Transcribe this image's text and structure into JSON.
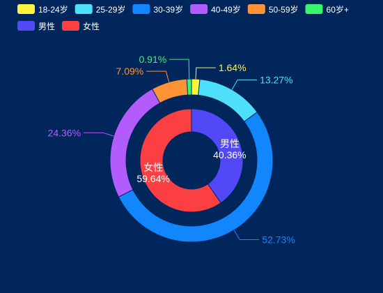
{
  "colors": {
    "background": "#01265c",
    "ring_gap": "#01265c"
  },
  "chart_data": {
    "type": "pie",
    "subtype": "nested-donut",
    "legend_position": "top-left",
    "legend": [
      {
        "label": "18-24岁",
        "color": "#fff33d"
      },
      {
        "label": "25-29岁",
        "color": "#4ee0fb"
      },
      {
        "label": "30-39岁",
        "color": "#1287fd"
      },
      {
        "label": "40-49岁",
        "color": "#b35cfe"
      },
      {
        "label": "50-59岁",
        "color": "#fd9334"
      },
      {
        "label": "60岁+",
        "color": "#38f56c"
      },
      {
        "label": "男性",
        "color": "#5348f6"
      },
      {
        "label": "女性",
        "color": "#fb3f43"
      }
    ],
    "outer_ring": {
      "series": [
        {
          "name": "18-24岁",
          "value": 1.64,
          "label": "1.64%",
          "color": "#fff33d"
        },
        {
          "name": "25-29岁",
          "value": 13.27,
          "label": "13.27%",
          "color": "#4ee0fb"
        },
        {
          "name": "30-39岁",
          "value": 52.73,
          "label": "52.73%",
          "color": "#1287fd"
        },
        {
          "name": "40-49岁",
          "value": 24.36,
          "label": "24.36%",
          "color": "#b35cfe"
        },
        {
          "name": "50-59岁",
          "value": 7.09,
          "label": "7.09%",
          "color": "#fd9334"
        },
        {
          "name": "60岁+",
          "value": 0.91,
          "label": "0.91%",
          "color": "#38f56c"
        }
      ]
    },
    "inner_ring": {
      "series": [
        {
          "name": "男性",
          "value": 40.36,
          "label": "40.36%",
          "color": "#5348f6"
        },
        {
          "name": "女性",
          "value": 59.64,
          "label": "59.64%",
          "color": "#fb3f43"
        }
      ]
    }
  }
}
